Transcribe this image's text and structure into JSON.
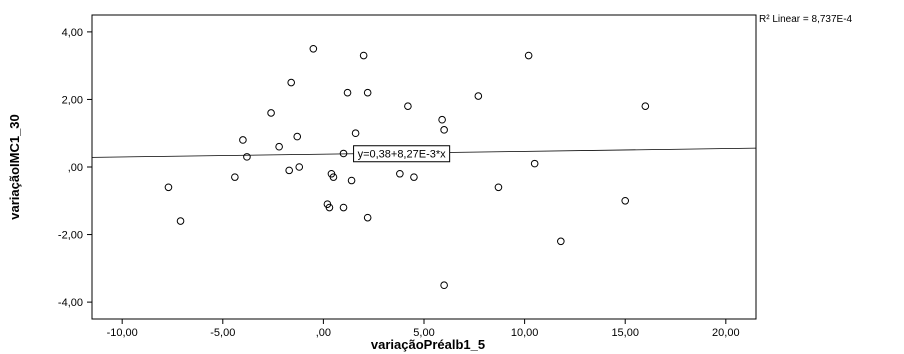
{
  "chart_data": {
    "type": "scatter",
    "title": "",
    "xlabel": "variaçãoPréalb1_5",
    "ylabel": "variaçãoIMC1_30",
    "xlim": [
      -11.5,
      21.5
    ],
    "ylim": [
      -4.5,
      4.5
    ],
    "x_ticks": [
      -10,
      -5,
      0,
      5,
      10,
      15,
      20
    ],
    "y_ticks": [
      -4,
      -2,
      0,
      2,
      4
    ],
    "x_tick_labels": [
      "-10,00",
      "-5,00",
      ",00",
      "5,00",
      "10,00",
      "15,00",
      "20,00"
    ],
    "y_tick_labels": [
      "-4,00",
      "-2,00",
      ",00",
      "2,00",
      "4,00"
    ],
    "grid": false,
    "points": [
      {
        "x": -0.5,
        "y": 3.5
      },
      {
        "x": 2.0,
        "y": 3.3
      },
      {
        "x": 10.2,
        "y": 3.3
      },
      {
        "x": -1.6,
        "y": 2.5
      },
      {
        "x": 1.2,
        "y": 2.2
      },
      {
        "x": 2.2,
        "y": 2.2
      },
      {
        "x": 7.7,
        "y": 2.1
      },
      {
        "x": 4.2,
        "y": 1.8
      },
      {
        "x": 16.0,
        "y": 1.8
      },
      {
        "x": -2.6,
        "y": 1.6
      },
      {
        "x": 5.9,
        "y": 1.4
      },
      {
        "x": 6.0,
        "y": 1.1
      },
      {
        "x": 1.6,
        "y": 1.0
      },
      {
        "x": -1.3,
        "y": 0.9
      },
      {
        "x": -4.0,
        "y": 0.8
      },
      {
        "x": -2.2,
        "y": 0.6
      },
      {
        "x": 1.0,
        "y": 0.4
      },
      {
        "x": -3.8,
        "y": 0.3
      },
      {
        "x": 10.5,
        "y": 0.1
      },
      {
        "x": -1.2,
        "y": 0.0
      },
      {
        "x": -1.7,
        "y": -0.1
      },
      {
        "x": 3.8,
        "y": -0.2
      },
      {
        "x": 0.4,
        "y": -0.2
      },
      {
        "x": 0.5,
        "y": -0.3
      },
      {
        "x": -4.4,
        "y": -0.3
      },
      {
        "x": 4.5,
        "y": -0.3
      },
      {
        "x": 1.4,
        "y": -0.4
      },
      {
        "x": -7.7,
        "y": -0.6
      },
      {
        "x": 8.7,
        "y": -0.6
      },
      {
        "x": 15.0,
        "y": -1.0
      },
      {
        "x": 0.2,
        "y": -1.1
      },
      {
        "x": 0.3,
        "y": -1.2
      },
      {
        "x": 1.0,
        "y": -1.2
      },
      {
        "x": 2.2,
        "y": -1.5
      },
      {
        "x": -7.1,
        "y": -1.6
      },
      {
        "x": 11.8,
        "y": -2.2
      },
      {
        "x": 6.0,
        "y": -3.5
      }
    ],
    "fit_line": {
      "intercept": 0.38,
      "slope": 0.00827
    },
    "fit_equation": "y=0,38+8,27E-3*x",
    "r2_label": "R² Linear = 8,737E-4"
  }
}
